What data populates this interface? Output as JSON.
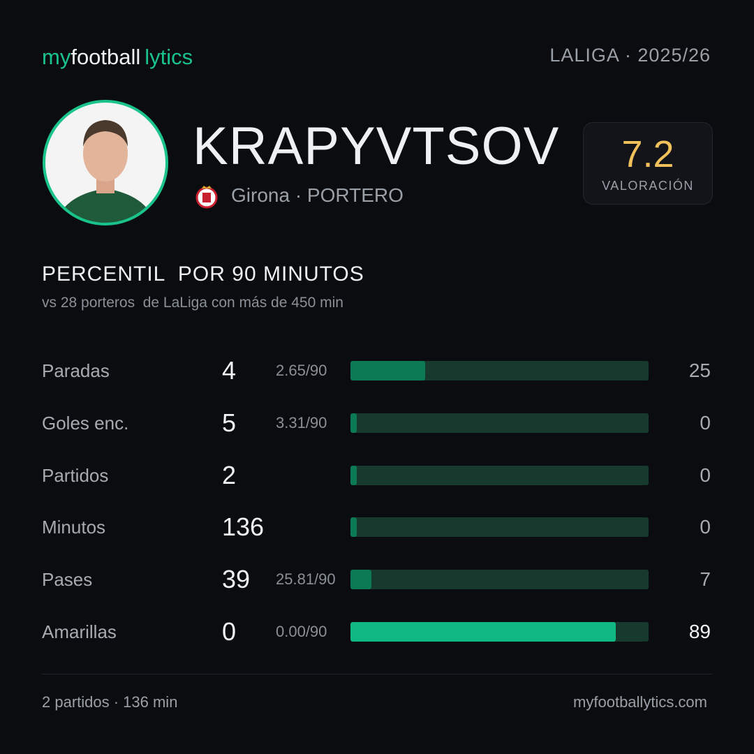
{
  "header": {
    "brand": [
      "my",
      "football",
      "lytics"
    ],
    "league": "LALIGA · 2025/26"
  },
  "player": {
    "name": "KRAPYVTSOV",
    "club": "Girona · PORTERO",
    "rating": "7.2",
    "rating_label": "VALORACIÓN"
  },
  "section": {
    "title": "PERCENTIL  POR 90 MINUTOS",
    "subtitle": "vs 28 porteros  de LaLiga con más de 450 min"
  },
  "rows": [
    {
      "label": "Paradas",
      "value": 4,
      "per90": "2.65/90",
      "percentile": 25
    },
    {
      "label": "Goles enc.",
      "value": 5,
      "per90": "3.31/90",
      "percentile": 0
    },
    {
      "label": "Partidos",
      "value": 2,
      "percentile": 0
    },
    {
      "label": "Minutos",
      "value": 136,
      "percentile": 0
    },
    {
      "label": "Pases",
      "value": 39,
      "per90": "25.81/90",
      "percentile": 7
    },
    {
      "label": "Amarillas",
      "value": 0,
      "per90": "0.00/90",
      "percentile": 89
    }
  ],
  "footer": {
    "left": "2 partidos · 136 min",
    "right": "myfootballytics.com"
  }
}
